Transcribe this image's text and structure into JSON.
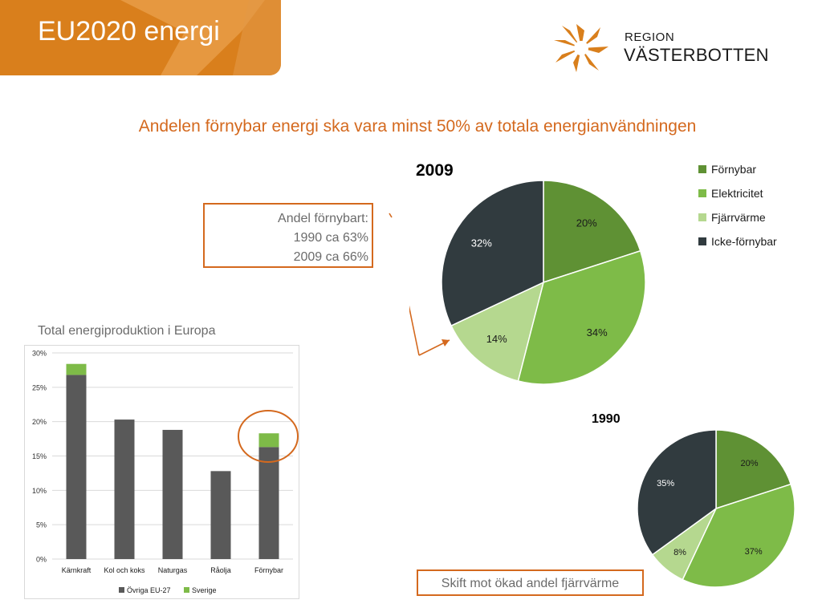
{
  "slide": {
    "title": "EU2020 energi",
    "subtitle": "Andelen förnybar energi ska vara minst 50% av totala energianvändningen",
    "logo": {
      "line1": "REGION",
      "line2": "VÄSTERBOTTEN",
      "icon": "star-burst-logo-icon"
    },
    "callout_share": {
      "line1": "Andel förnybart:",
      "line2": "1990 ca 63%",
      "line3": "2009 ca 66%"
    },
    "callout_shift": "Skift mot ökad andel fjärrvärme",
    "colors": {
      "accent": "#d97f1c",
      "dark": "#313b3f",
      "green_dark": "#5f9134",
      "green": "#7ebb48",
      "green_light": "#b5d88f",
      "bar_gray": "#595959"
    }
  },
  "chart_data": [
    {
      "type": "pie",
      "title": "2009",
      "categories": [
        "Förnybar",
        "Elektricitet",
        "Fjärrvärme",
        "Icke-förnybar"
      ],
      "values": [
        20,
        34,
        14,
        32
      ],
      "labels": [
        "20%",
        "34%",
        "14%",
        "32%"
      ],
      "legend": "right"
    },
    {
      "type": "pie",
      "title": "1990",
      "categories": [
        "Förnybar",
        "Elektricitet",
        "Fjärrvärme",
        "Icke-förnybar"
      ],
      "values": [
        20,
        37,
        8,
        35
      ],
      "labels": [
        "20%",
        "37%",
        "8%",
        "35%"
      ],
      "legend": "none"
    },
    {
      "type": "bar",
      "stacked": true,
      "title": "Total energiproduktion i Europa",
      "categories": [
        "Kärnkraft",
        "Kol och koks",
        "Naturgas",
        "Råolja",
        "Förnybar"
      ],
      "series": [
        {
          "name": "Övriga EU-27",
          "values": [
            26.8,
            20.3,
            18.8,
            12.8,
            16.3
          ]
        },
        {
          "name": "Sverige",
          "values": [
            1.6,
            0,
            0,
            0,
            2.0
          ]
        }
      ],
      "yticks": [
        "0%",
        "5%",
        "10%",
        "15%",
        "20%",
        "25%",
        "30%"
      ],
      "ylim": [
        0,
        30
      ],
      "grid": true,
      "legend": "bottom",
      "highlighted_category": "Förnybar"
    }
  ]
}
